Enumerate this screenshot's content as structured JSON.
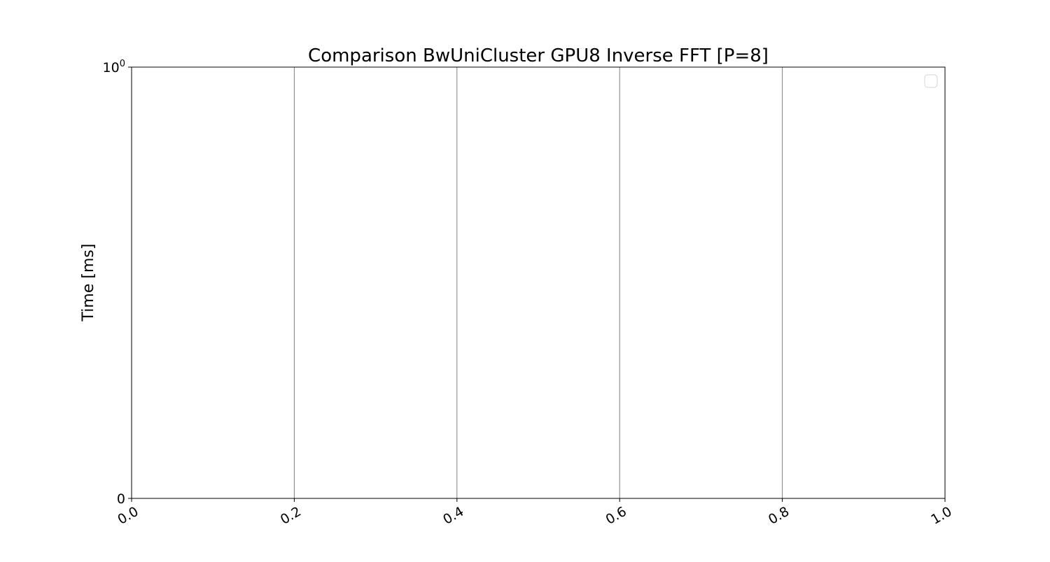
{
  "chart_data": {
    "type": "line",
    "title": "Comparison BwUniCluster GPU8 Inverse FFT [P=8]",
    "xlabel": "",
    "ylabel": "Time [ms]",
    "xlim": [
      0.0,
      1.0
    ],
    "x_ticks": [
      "0.0",
      "0.2",
      "0.4",
      "0.6",
      "0.8",
      "1.0"
    ],
    "x_tick_values": [
      0.0,
      0.2,
      0.4,
      0.6,
      0.8,
      1.0
    ],
    "y_scale": "symlog",
    "y_ticks": [
      {
        "value": 0,
        "base": "0",
        "exponent": ""
      },
      {
        "value": 1,
        "base": "10",
        "exponent": "0"
      }
    ],
    "x_grid": true,
    "y_grid": false,
    "legend": {
      "placement": "top-right",
      "entries": []
    },
    "series": []
  }
}
